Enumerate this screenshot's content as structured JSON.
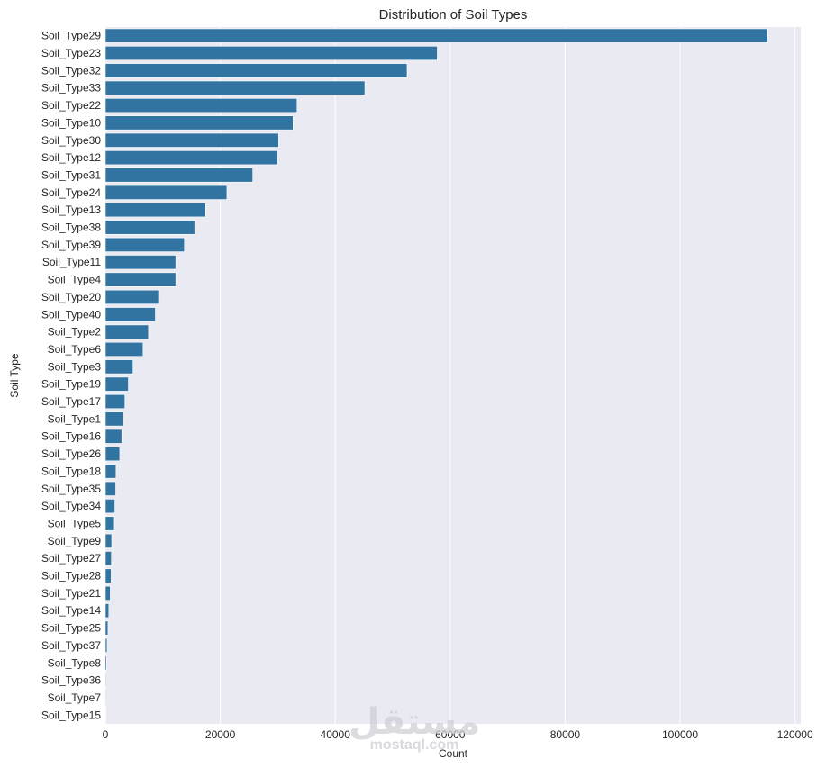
{
  "chart_data": {
    "type": "bar",
    "orientation": "horizontal",
    "title": "Distribution of Soil Types",
    "xlabel": "Count",
    "ylabel": "Soil Type",
    "xlim": [
      0,
      121000
    ],
    "x_ticks": [
      0,
      20000,
      40000,
      60000,
      80000,
      100000,
      120000
    ],
    "grid": true,
    "bar_color": "#3274a1",
    "background_color": "#eaeaf2",
    "grid_color": "#ffffff",
    "categories": [
      "Soil_Type29",
      "Soil_Type23",
      "Soil_Type32",
      "Soil_Type33",
      "Soil_Type22",
      "Soil_Type10",
      "Soil_Type30",
      "Soil_Type12",
      "Soil_Type31",
      "Soil_Type24",
      "Soil_Type13",
      "Soil_Type38",
      "Soil_Type39",
      "Soil_Type11",
      "Soil_Type4",
      "Soil_Type20",
      "Soil_Type40",
      "Soil_Type2",
      "Soil_Type6",
      "Soil_Type3",
      "Soil_Type19",
      "Soil_Type17",
      "Soil_Type1",
      "Soil_Type16",
      "Soil_Type26",
      "Soil_Type18",
      "Soil_Type35",
      "Soil_Type34",
      "Soil_Type5",
      "Soil_Type9",
      "Soil_Type27",
      "Soil_Type28",
      "Soil_Type21",
      "Soil_Type14",
      "Soil_Type25",
      "Soil_Type37",
      "Soil_Type8",
      "Soil_Type36",
      "Soil_Type7",
      "Soil_Type15"
    ],
    "values": [
      115250,
      57750,
      52500,
      45150,
      33350,
      32650,
      30150,
      29950,
      25650,
      21150,
      17450,
      15550,
      13750,
      12250,
      12250,
      9250,
      8700,
      7500,
      6550,
      4800,
      4000,
      3400,
      3050,
      2850,
      2500,
      1850,
      1800,
      1650,
      1550,
      1100,
      1050,
      1000,
      850,
      600,
      450,
      300,
      200,
      120,
      100,
      30
    ]
  },
  "watermark": {
    "arabic": "مستقل",
    "latin": "mostaql.com"
  }
}
